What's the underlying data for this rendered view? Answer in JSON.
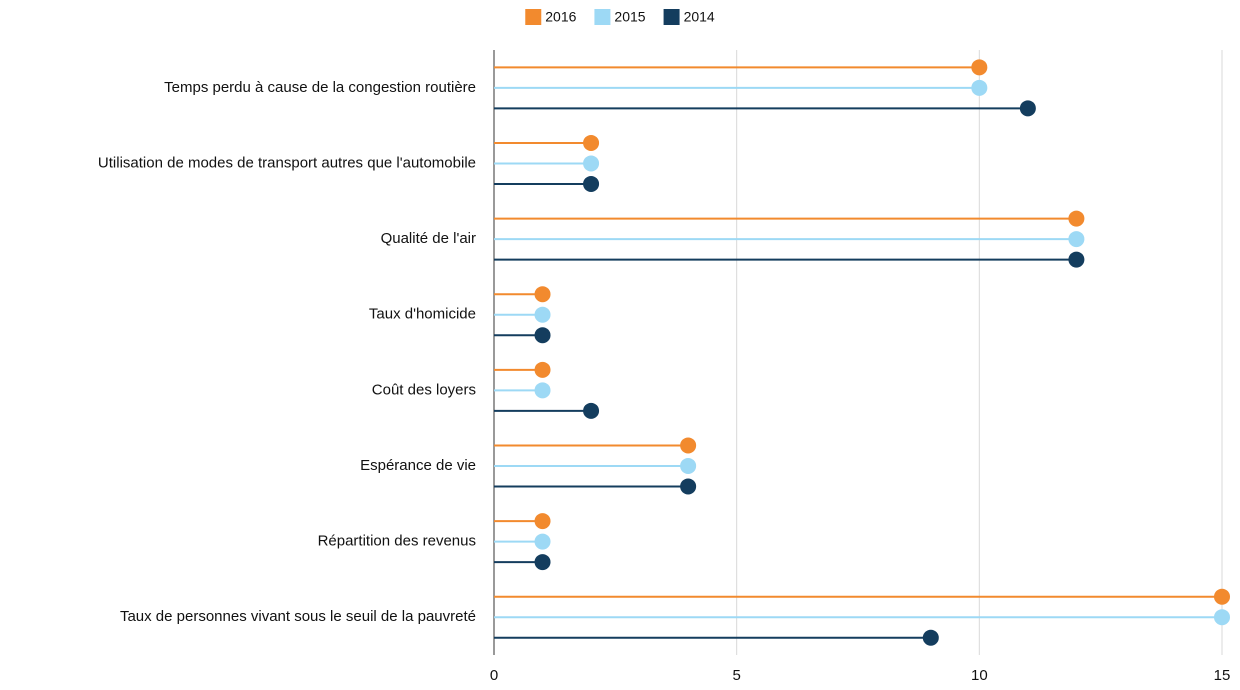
{
  "chart_data": {
    "type": "lollipop",
    "categories": [
      "Temps perdu à cause de la congestion routière",
      "Utilisation de modes de transport autres que l'automobile",
      "Qualité de l'air",
      "Taux d'homicide",
      "Coût des loyers",
      "Espérance de vie",
      "Répartition des revenus",
      "Taux de personnes vivant sous le seuil de la pauvreté"
    ],
    "series": [
      {
        "name": "2016",
        "color": "#f28a2e",
        "values": [
          10,
          2,
          12,
          1,
          1,
          4,
          1,
          15
        ]
      },
      {
        "name": "2015",
        "color": "#9dd9f5",
        "values": [
          10,
          2,
          12,
          1,
          1,
          4,
          1,
          15
        ]
      },
      {
        "name": "2014",
        "color": "#143d5e",
        "values": [
          11,
          2,
          12,
          1,
          2,
          4,
          1,
          9
        ]
      }
    ],
    "xlim": [
      0,
      15
    ],
    "xticks": [
      0,
      5,
      10,
      15
    ],
    "grid": true,
    "legend": "top"
  }
}
